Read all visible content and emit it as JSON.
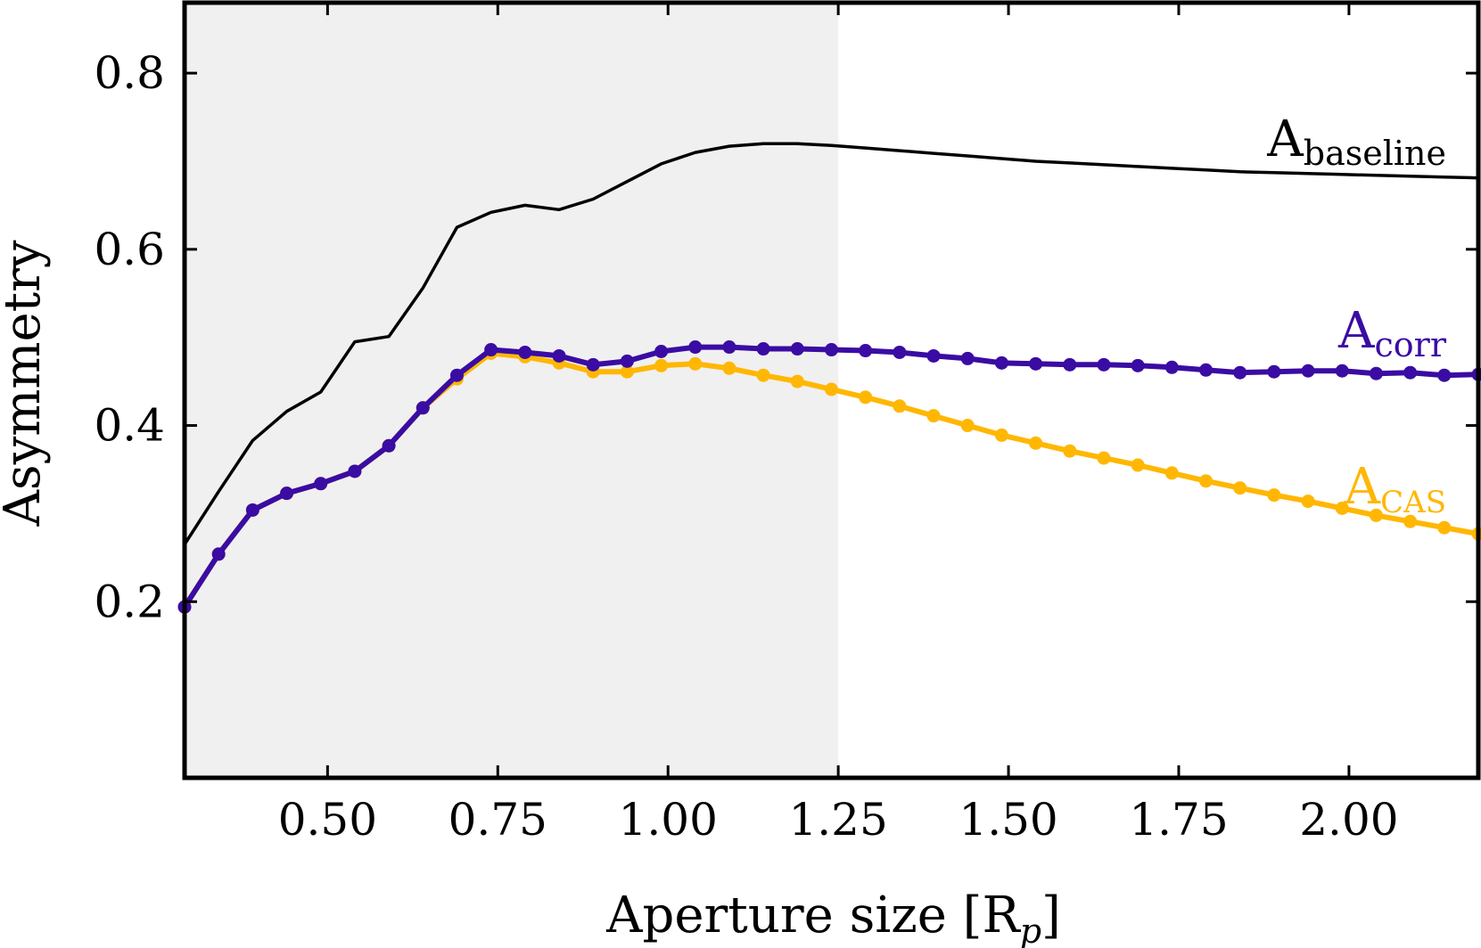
{
  "chart_data": {
    "type": "line",
    "title": "",
    "xlabel": "Aperture size [R",
    "xlabel_sub": "p",
    "xlabel_close": "]",
    "ylabel": "Asymmetry",
    "xlim": [
      0.29,
      2.19
    ],
    "ylim": [
      0.0,
      0.88
    ],
    "xticks": [
      0.5,
      0.75,
      1.0,
      1.25,
      1.5,
      1.75,
      2.0
    ],
    "xtick_labels": [
      "0.50",
      "0.75",
      "1.00",
      "1.25",
      "1.50",
      "1.75",
      "2.00"
    ],
    "yticks": [
      0.2,
      0.4,
      0.6,
      0.8
    ],
    "ytick_labels": [
      "0.2",
      "0.4",
      "0.6",
      "0.8"
    ],
    "shaded_region": {
      "x_from": 0.29,
      "x_to": 1.25,
      "color": "#f0f0f0"
    },
    "grid": false,
    "x": [
      0.29,
      0.34,
      0.39,
      0.44,
      0.49,
      0.54,
      0.59,
      0.64,
      0.69,
      0.74,
      0.79,
      0.84,
      0.89,
      0.94,
      0.99,
      1.04,
      1.09,
      1.14,
      1.19,
      1.24,
      1.29,
      1.34,
      1.39,
      1.44,
      1.49,
      1.54,
      1.59,
      1.64,
      1.69,
      1.74,
      1.79,
      1.84,
      1.89,
      1.94,
      1.99,
      2.04,
      2.09,
      2.14,
      2.19
    ],
    "series": [
      {
        "name": "A_baseline",
        "label_main": "A",
        "label_sub": "baseline",
        "color": "#000000",
        "markers": false,
        "values": [
          0.265,
          0.325,
          0.383,
          0.416,
          0.438,
          0.495,
          0.501,
          0.556,
          0.625,
          0.642,
          0.65,
          0.645,
          0.657,
          0.677,
          0.697,
          0.71,
          0.717,
          0.72,
          0.72,
          0.718,
          0.715,
          0.712,
          0.709,
          0.706,
          0.703,
          0.7,
          0.698,
          0.696,
          0.694,
          0.692,
          0.69,
          0.688,
          0.687,
          0.686,
          0.685,
          0.684,
          0.683,
          0.682,
          0.681
        ]
      },
      {
        "name": "A_corr",
        "label_main": "A",
        "label_sub": "corr",
        "color": "#3a0ca3",
        "markers": true,
        "values": [
          0.194,
          0.254,
          0.304,
          0.323,
          0.334,
          0.348,
          0.377,
          0.42,
          0.457,
          0.486,
          0.483,
          0.479,
          0.469,
          0.473,
          0.484,
          0.489,
          0.489,
          0.487,
          0.487,
          0.486,
          0.485,
          0.483,
          0.479,
          0.476,
          0.471,
          0.47,
          0.469,
          0.469,
          0.468,
          0.466,
          0.463,
          0.46,
          0.461,
          0.462,
          0.462,
          0.459,
          0.46,
          0.457,
          0.458
        ]
      },
      {
        "name": "A_CAS",
        "label_main": "A",
        "label_sub": "CAS",
        "color": "#ffb703",
        "markers": true,
        "values": [
          0.194,
          0.254,
          0.304,
          0.323,
          0.334,
          0.348,
          0.377,
          0.42,
          0.453,
          0.482,
          0.478,
          0.471,
          0.461,
          0.461,
          0.468,
          0.47,
          0.465,
          0.457,
          0.45,
          0.441,
          0.432,
          0.422,
          0.411,
          0.4,
          0.389,
          0.38,
          0.371,
          0.363,
          0.355,
          0.346,
          0.337,
          0.329,
          0.321,
          0.314,
          0.306,
          0.298,
          0.291,
          0.284,
          0.277
        ]
      }
    ]
  }
}
